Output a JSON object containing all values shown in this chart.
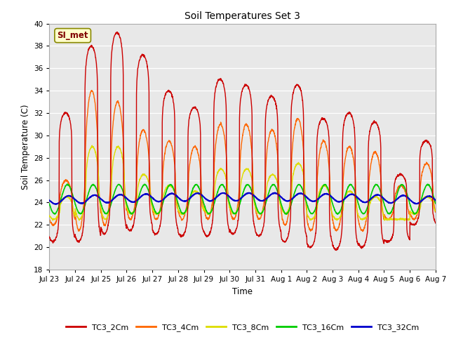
{
  "title": "Soil Temperatures Set 3",
  "xlabel": "Time",
  "ylabel": "Soil Temperature (C)",
  "ylim": [
    18,
    40
  ],
  "yticks": [
    18,
    20,
    22,
    24,
    26,
    28,
    30,
    32,
    34,
    36,
    38,
    40
  ],
  "series_colors": {
    "TC3_2Cm": "#cc0000",
    "TC3_4Cm": "#ff6600",
    "TC3_8Cm": "#dddd00",
    "TC3_16Cm": "#00cc00",
    "TC3_32Cm": "#0000cc"
  },
  "series_labels": [
    "TC3_2Cm",
    "TC3_4Cm",
    "TC3_8Cm",
    "TC3_16Cm",
    "TC3_32Cm"
  ],
  "annotation_text": "SI_met",
  "annotation_color": "#800000",
  "annotation_bg": "#ffffcc",
  "fig_bg": "#ffffff",
  "plot_bg": "#e8e8e8",
  "xtick_labels": [
    "Jul 23",
    "Jul 24",
    "Jul 25",
    "Jul 26",
    "Jul 27",
    "Jul 28",
    "Jul 29",
    "Jul 30",
    "Jul 31",
    "Aug 1",
    "Aug 2",
    "Aug 3",
    "Aug 4",
    "Aug 5",
    "Aug 6",
    "Aug 7"
  ],
  "peaks_2cm": [
    32,
    38,
    39.2,
    37.2,
    34.0,
    32.5,
    35.0,
    34.5,
    33.5,
    34.5,
    31.5,
    32.0,
    31.2,
    26.5,
    29.5
  ],
  "troughs_2cm": [
    20.5,
    20.5,
    21.2,
    21.5,
    21.2,
    21.0,
    21.0,
    21.2,
    21.0,
    20.5,
    20.0,
    19.8,
    20.0,
    20.5,
    22.0
  ],
  "peaks_4cm": [
    26.0,
    34.0,
    33.0,
    30.5,
    29.5,
    29.0,
    31.0,
    31.0,
    30.5,
    31.5,
    29.5,
    29.0,
    28.5,
    25.5,
    27.5
  ],
  "troughs_4cm": [
    22.0,
    21.5,
    22.0,
    22.5,
    22.5,
    22.5,
    22.5,
    22.5,
    22.5,
    22.0,
    21.5,
    21.5,
    21.5,
    22.5,
    22.5
  ],
  "peaks_8cm": [
    24.5,
    29.0,
    29.0,
    26.5,
    25.5,
    25.0,
    27.0,
    27.0,
    26.5,
    27.5,
    25.5,
    25.0,
    24.5,
    22.5,
    24.5
  ],
  "troughs_8cm": [
    22.5,
    22.5,
    22.5,
    23.0,
    23.0,
    23.0,
    23.0,
    23.0,
    23.0,
    23.0,
    22.5,
    22.5,
    22.5,
    22.5,
    23.0
  ],
  "base_16cm": 24.3,
  "amp_16cm": 1.3,
  "base_32cm": 24.2,
  "amp_32cm": 0.35
}
